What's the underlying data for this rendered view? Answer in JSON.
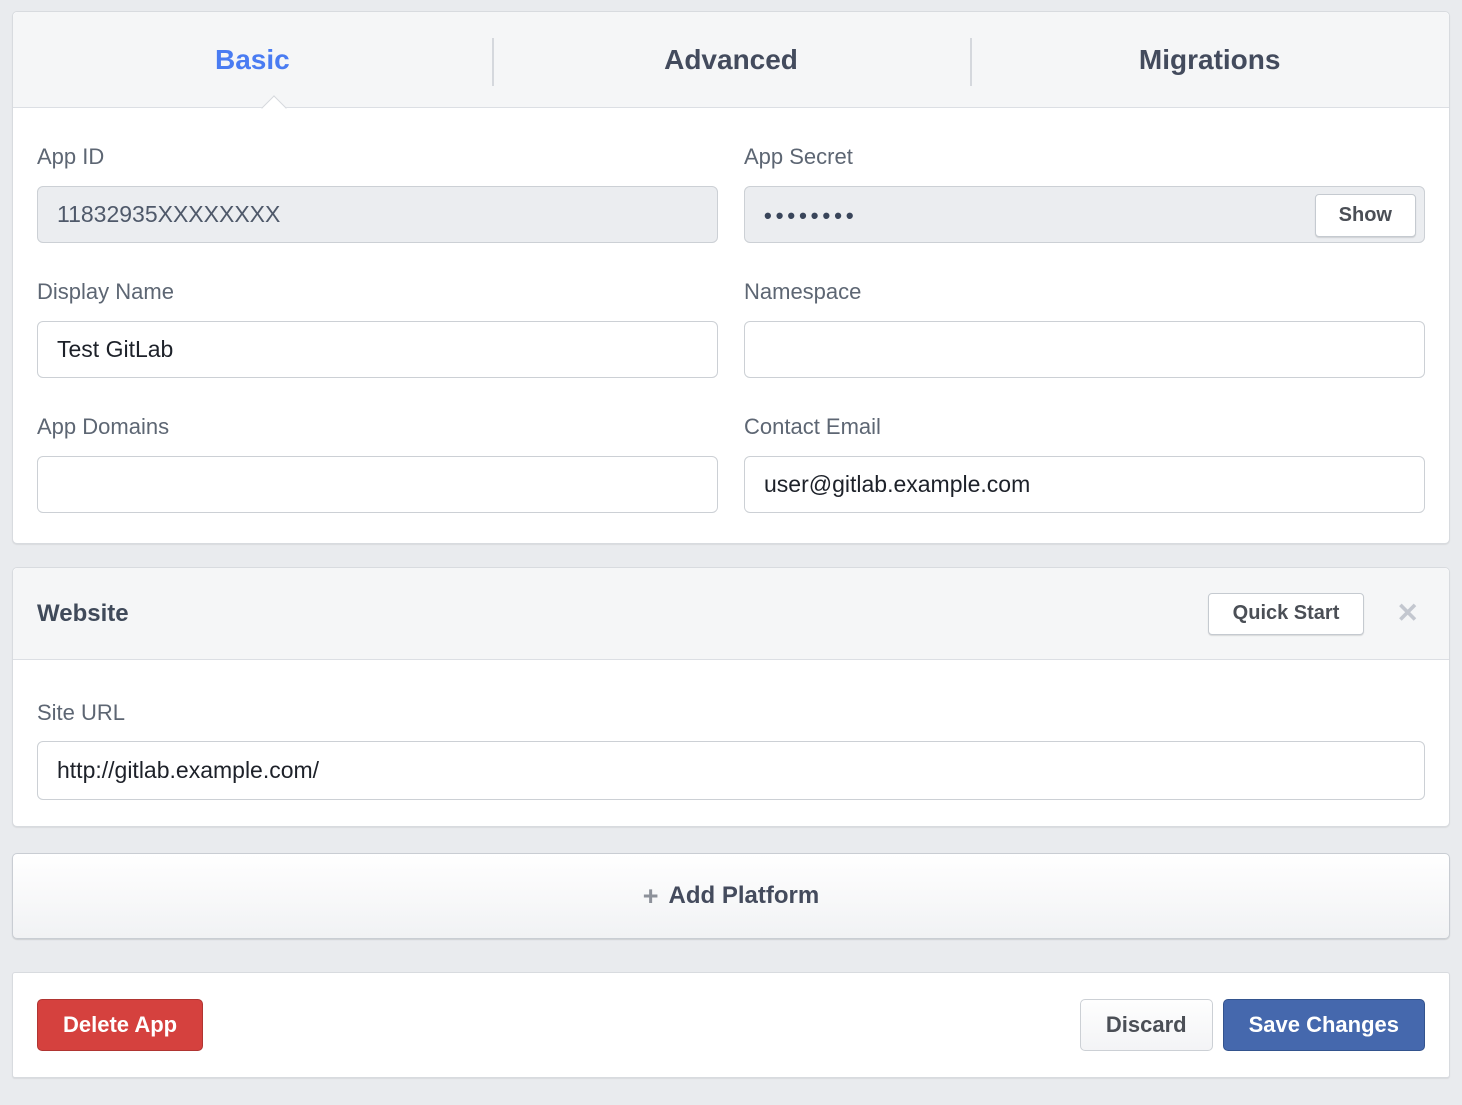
{
  "tabs": [
    {
      "label": "Basic",
      "active": true
    },
    {
      "label": "Advanced",
      "active": false
    },
    {
      "label": "Migrations",
      "active": false
    }
  ],
  "form": {
    "app_id": {
      "label": "App ID",
      "value": "11832935XXXXXXXX"
    },
    "app_secret": {
      "label": "App Secret",
      "masked_value": "••••••••",
      "show_button_label": "Show"
    },
    "display_name": {
      "label": "Display Name",
      "value": "Test GitLab"
    },
    "namespace": {
      "label": "Namespace",
      "value": ""
    },
    "app_domains": {
      "label": "App Domains",
      "value": ""
    },
    "contact_email": {
      "label": "Contact Email",
      "value": "user@gitlab.example.com"
    }
  },
  "website": {
    "title": "Website",
    "quick_start_label": "Quick Start",
    "close_icon": "✕",
    "site_url": {
      "label": "Site URL",
      "value": "http://gitlab.example.com/"
    }
  },
  "add_platform": {
    "plus_icon": "+",
    "label": "Add Platform"
  },
  "footer": {
    "delete_label": "Delete App",
    "discard_label": "Discard",
    "save_label": "Save Changes"
  },
  "colors": {
    "page_bg": "#e9ebee",
    "card_header_bg": "#f5f6f7",
    "active_tab_blue": "#4a7cf2",
    "delete_red": "#d5413e",
    "save_blue": "#4568ad",
    "label_gray": "#5d6673"
  }
}
